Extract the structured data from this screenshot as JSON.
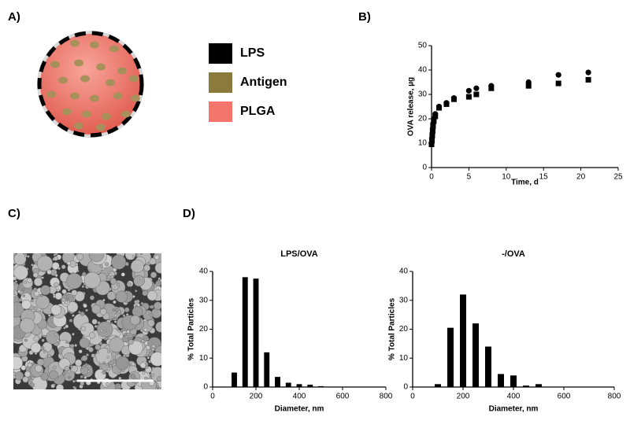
{
  "panel_labels": [
    "A)",
    "B)",
    "C)",
    "D)"
  ],
  "diagram": {
    "legend": [
      {
        "name": "LPS",
        "color": "#000000"
      },
      {
        "name": "Antigen",
        "color": "#8c7a3c"
      },
      {
        "name": "PLGA",
        "color": "#f4756b"
      }
    ]
  },
  "chart_data": [
    {
      "type": "scatter",
      "xlabel": "Time, d",
      "ylabel": "OVA release, µg",
      "xlim": [
        0,
        25
      ],
      "xticks": [
        0,
        5,
        10,
        15,
        20,
        25
      ],
      "ylim": [
        0,
        50
      ],
      "yticks": [
        0,
        10,
        20,
        30,
        40,
        50
      ],
      "series": [
        {
          "marker": "circle",
          "color": "#000000",
          "x": [
            0,
            0.05,
            0.1,
            0.15,
            0.2,
            0.3,
            0.5,
            1,
            2,
            3,
            5,
            6,
            8,
            13,
            17,
            21
          ],
          "values": [
            10,
            12,
            14,
            16,
            18,
            20,
            22,
            25,
            26.5,
            28.5,
            31.5,
            32.5,
            33.5,
            35,
            38,
            39
          ]
        },
        {
          "marker": "square",
          "color": "#000000",
          "x": [
            0,
            0.05,
            0.1,
            0.15,
            0.2,
            0.3,
            0.5,
            1,
            2,
            3,
            5,
            6,
            8,
            13,
            17,
            21
          ],
          "values": [
            9.5,
            11,
            13,
            15,
            17,
            19,
            21,
            24.5,
            26,
            28,
            29,
            30,
            32.5,
            33.5,
            34.5,
            36
          ]
        }
      ]
    },
    {
      "type": "bar",
      "title": "LPS/OVA",
      "xlabel": "Diameter, nm",
      "ylabel": "% Total Particles",
      "color": "#000000",
      "xlim": [
        0,
        800
      ],
      "xticks": [
        0,
        200,
        400,
        600,
        800
      ],
      "ylim": [
        0,
        40
      ],
      "yticks": [
        0,
        10,
        20,
        30,
        40
      ],
      "x": [
        100,
        150,
        200,
        250,
        300,
        350,
        400,
        450,
        500
      ],
      "values": [
        5,
        38,
        37.5,
        12,
        3.5,
        1.5,
        1,
        0.8,
        0.3
      ]
    },
    {
      "type": "bar",
      "title": "-/OVA",
      "xlabel": "Diameter, nm",
      "ylabel": "% Total Particles",
      "color": "#000000",
      "xlim": [
        0,
        800
      ],
      "xticks": [
        0,
        200,
        400,
        600,
        800
      ],
      "ylim": [
        0,
        40
      ],
      "yticks": [
        0,
        10,
        20,
        30,
        40
      ],
      "x": [
        100,
        150,
        200,
        250,
        300,
        350,
        400,
        450,
        500
      ],
      "values": [
        1,
        20.5,
        32,
        22,
        14,
        4.5,
        4,
        0.5,
        1
      ]
    }
  ]
}
